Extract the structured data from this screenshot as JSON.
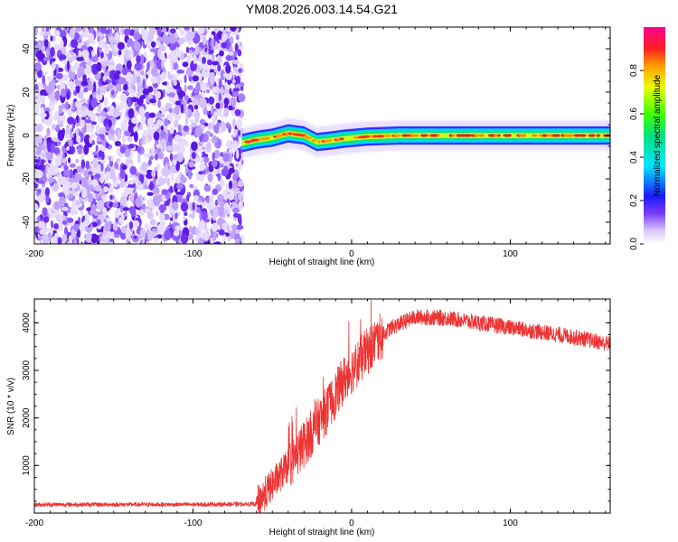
{
  "title": "YM08.2026.003.14.54.G21",
  "chart_data": [
    {
      "type": "heatmap",
      "name": "spectrogram",
      "xlabel": "Height of straight line (km)",
      "ylabel": "Frequency (Hz)",
      "xlim": [
        -200,
        163
      ],
      "ylim": [
        -50,
        50
      ],
      "xticks": [
        "-200",
        "-100",
        "0",
        "100"
      ],
      "xtick_values": [
        -200,
        -100,
        0,
        100
      ],
      "yticks": [
        "-40",
        "-20",
        "0",
        "20",
        "40"
      ],
      "ytick_values": [
        -40,
        -20,
        0,
        20,
        40
      ],
      "noise_region_x": [
        -200,
        -69
      ],
      "signal_region_x": [
        -69,
        163
      ],
      "signal_frequency_hz": 0,
      "signal_band_points": [
        {
          "x": -69,
          "f": -3.5
        },
        {
          "x": -60,
          "f": -2
        },
        {
          "x": -50,
          "f": -1
        },
        {
          "x": -40,
          "f": 1
        },
        {
          "x": -30,
          "f": 0
        },
        {
          "x": -22,
          "f": -3
        },
        {
          "x": -15,
          "f": -2.5
        },
        {
          "x": -5,
          "f": -1.5
        },
        {
          "x": 10,
          "f": -0.5
        },
        {
          "x": 30,
          "f": 0
        },
        {
          "x": 80,
          "f": 0
        },
        {
          "x": 163,
          "f": 0
        }
      ],
      "colorbar": {
        "label": "Normalized spectral amplitude",
        "ticks": [
          "0.0",
          "0.2",
          "0.4",
          "0.6",
          "0.8"
        ],
        "tick_values": [
          0.0,
          0.2,
          0.4,
          0.6,
          0.8
        ],
        "range": [
          0,
          1
        ]
      }
    },
    {
      "type": "line",
      "name": "snr",
      "xlabel": "Height of straight line (km)",
      "ylabel": "SNR (10 * v/v)",
      "xlim": [
        -200,
        163
      ],
      "ylim": [
        0,
        4500
      ],
      "xticks": [
        "-200",
        "-100",
        "0",
        "100"
      ],
      "xtick_values": [
        -200,
        -100,
        0,
        100
      ],
      "yticks": [
        "1000",
        "2000",
        "3000",
        "4000"
      ],
      "ytick_values": [
        1000,
        2000,
        3000,
        4000
      ],
      "color": "#ee3333",
      "envelope": [
        {
          "x": -200,
          "y": 180
        },
        {
          "x": -150,
          "y": 180
        },
        {
          "x": -100,
          "y": 180
        },
        {
          "x": -60,
          "y": 190
        },
        {
          "x": -55,
          "y": 400
        },
        {
          "x": -45,
          "y": 800
        },
        {
          "x": -35,
          "y": 1200
        },
        {
          "x": -25,
          "y": 1700
        },
        {
          "x": -15,
          "y": 2200
        },
        {
          "x": -5,
          "y": 2800
        },
        {
          "x": 5,
          "y": 3200
        },
        {
          "x": 15,
          "y": 3600
        },
        {
          "x": 25,
          "y": 3900
        },
        {
          "x": 40,
          "y": 4120
        },
        {
          "x": 60,
          "y": 4100
        },
        {
          "x": 80,
          "y": 4000
        },
        {
          "x": 100,
          "y": 3900
        },
        {
          "x": 120,
          "y": 3800
        },
        {
          "x": 140,
          "y": 3700
        },
        {
          "x": 163,
          "y": 3550
        }
      ]
    }
  ]
}
